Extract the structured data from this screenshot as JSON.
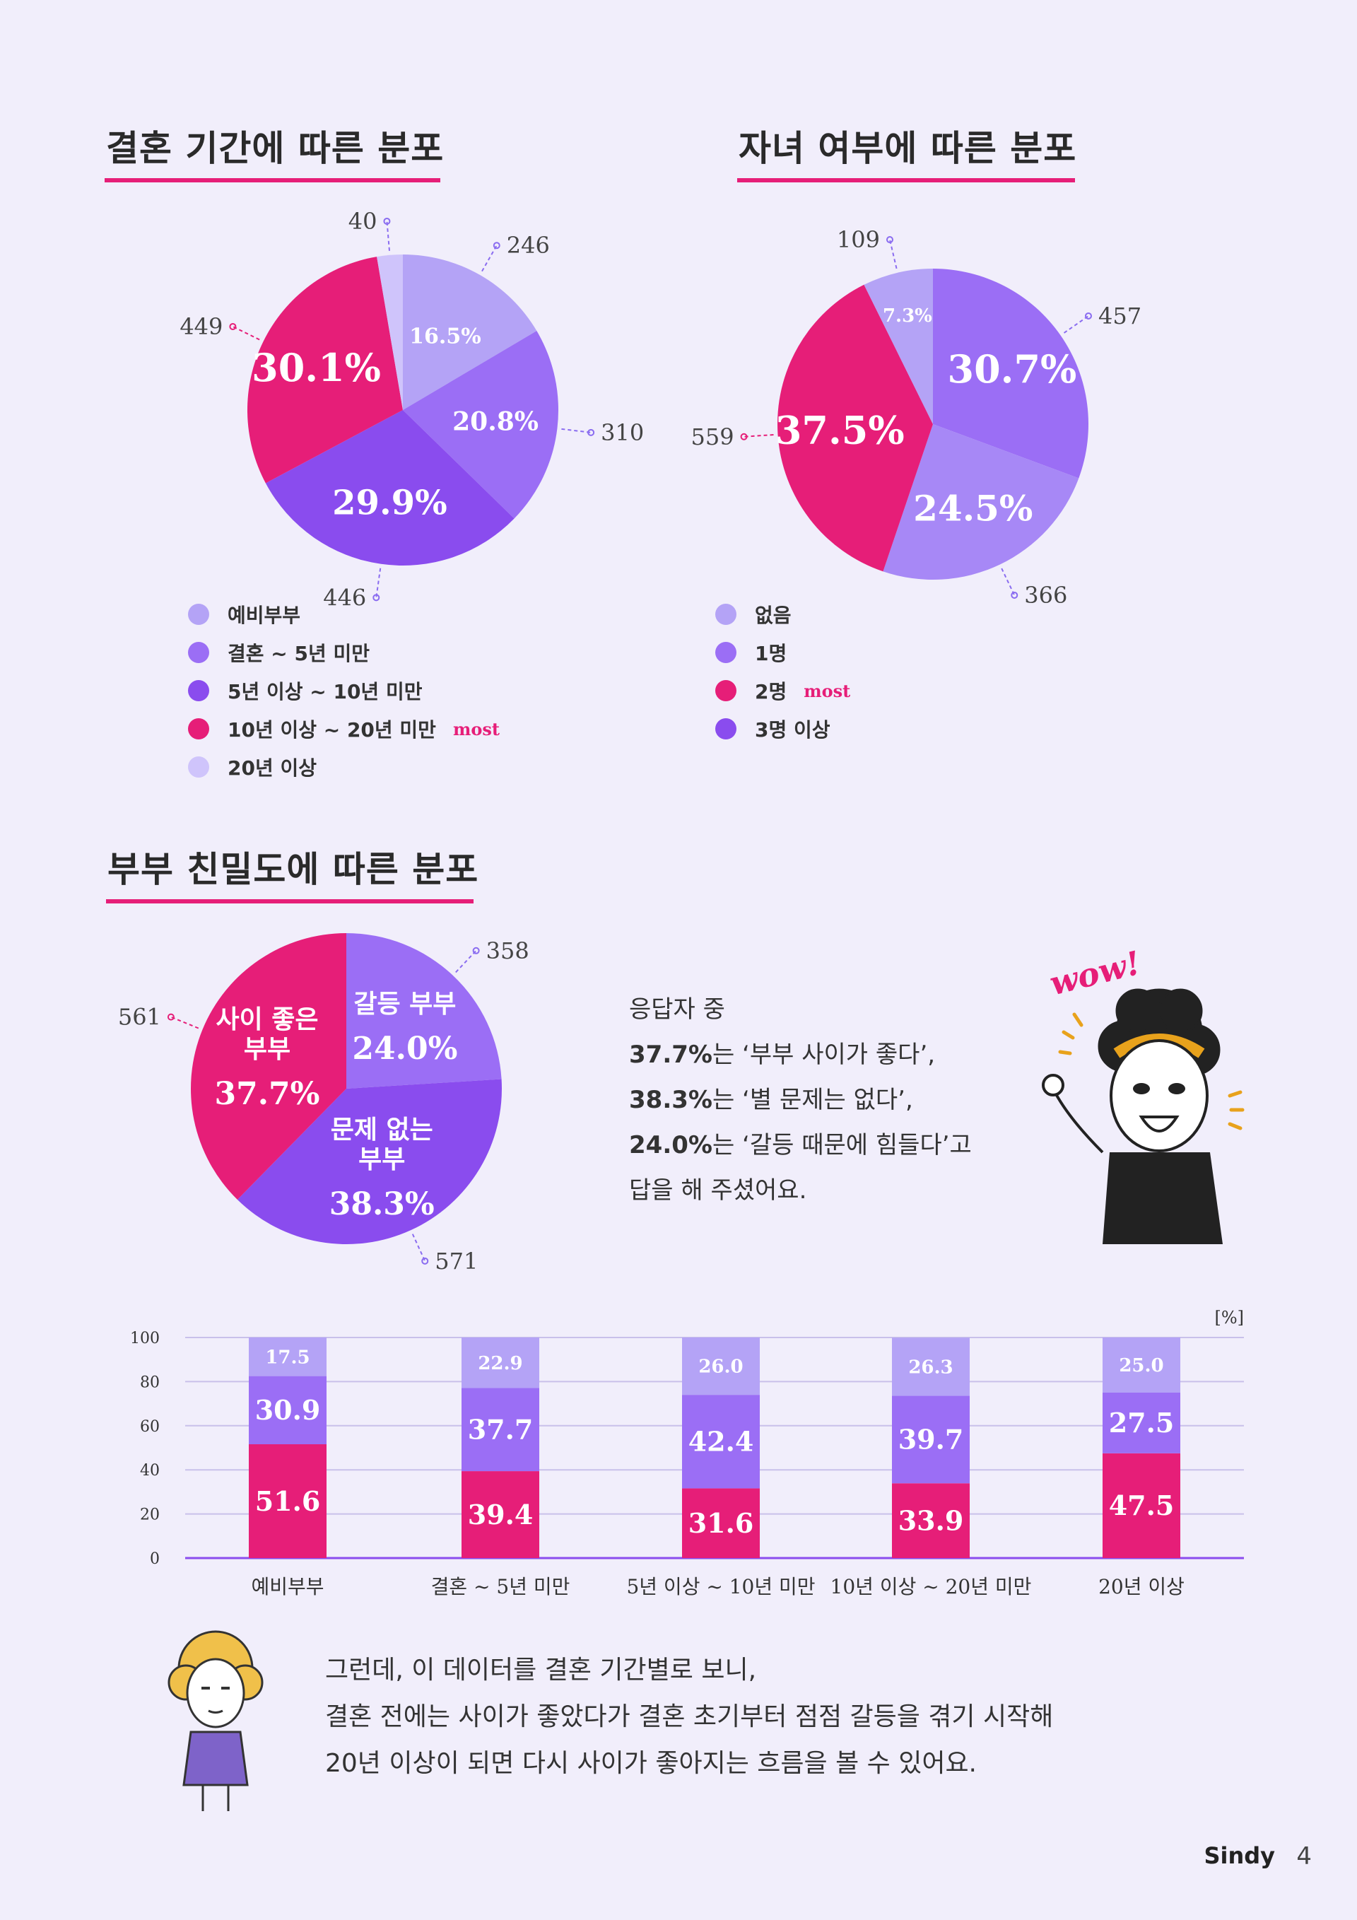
{
  "sections": {
    "marriage_duration": {
      "title": "결혼 기간에 따른 분포",
      "legend": [
        {
          "label": "예비부부",
          "color": "#b4a3f6"
        },
        {
          "label": "결혼 ~ 5년 미만",
          "color": "#9b6ef5"
        },
        {
          "label": "5년 이상 ~ 10년 미만",
          "color": "#8a4cee"
        },
        {
          "label": "10년 이상 ~ 20년 미만",
          "color": "#e61e78",
          "tag": "most"
        },
        {
          "label": "20년 이상",
          "color": "#cfc4fb"
        }
      ]
    },
    "children": {
      "title": "자녀 여부에 따른 분포",
      "legend": [
        {
          "label": "없음",
          "color": "#b4a3f6"
        },
        {
          "label": "1명",
          "color": "#9b6ef5"
        },
        {
          "label": "2명",
          "color": "#e61e78",
          "tag": "most"
        },
        {
          "label": "3명 이상",
          "color": "#8a4cee"
        }
      ]
    },
    "intimacy": {
      "title": "부부 친밀도에 따른 분포",
      "paragraph": [
        {
          "plain": "응답자 중"
        },
        {
          "bold": "37.7%",
          "plain": "는 ‘부부 사이가 좋다’,"
        },
        {
          "bold": "38.3%",
          "plain": "는 ‘별 문제는 없다’,"
        },
        {
          "bold": "24.0%",
          "plain": "는 ‘갈등 때문에 힘들다’고"
        },
        {
          "plain": "답을 해 주셨어요."
        }
      ],
      "wow_text": "wow!"
    }
  },
  "bottom_text": [
    "그런데, 이 데이터를 결혼 기간별로 보니,",
    "결혼 전에는 사이가 좋았다가 결혼 초기부터 점점 갈등을 겪기 시작해",
    "20년 이상이 되면 다시 사이가 좋아지는 흐름을 볼 수 있어요."
  ],
  "footer": {
    "brand": "Sindy",
    "page": "4"
  },
  "chart_data": [
    {
      "type": "pie",
      "title": "결혼 기간에 따른 분포",
      "slices": [
        {
          "label": "예비부부",
          "count": 246,
          "percent": "16.5%",
          "color": "#b4a3f6"
        },
        {
          "label": "결혼 ~ 5년 미만",
          "count": 310,
          "percent": "20.8%",
          "color": "#9b6ef5"
        },
        {
          "label": "5년 이상 ~ 10년 미만",
          "count": 446,
          "percent": "29.9%",
          "color": "#8a4cee"
        },
        {
          "label": "10년 이상 ~ 20년 미만",
          "count": 449,
          "percent": "30.1%",
          "color": "#e61e78"
        },
        {
          "label": "20년 이상",
          "count": 40,
          "percent": "",
          "color": "#cfc4fb"
        }
      ]
    },
    {
      "type": "pie",
      "title": "자녀 여부에 따른 분포",
      "slices": [
        {
          "label": "1명",
          "count": 457,
          "percent": "30.7%",
          "color": "#9b6ef5"
        },
        {
          "label": "3명 이상",
          "count": 366,
          "percent": "24.5%",
          "color": "#a788f6"
        },
        {
          "label": "2명",
          "count": 559,
          "percent": "37.5%",
          "color": "#e61e78"
        },
        {
          "label": "없음",
          "count": 109,
          "percent": "7.3%",
          "color": "#b4a3f6"
        }
      ]
    },
    {
      "type": "pie",
      "title": "부부 친밀도에 따른 분포",
      "slices": [
        {
          "label": "갈등 부부",
          "count": 358,
          "percent": "24.0%",
          "color": "#9b6ef5"
        },
        {
          "label": "문제 없는 부부",
          "count": 571,
          "percent": "38.3%",
          "color": "#8a4cee"
        },
        {
          "label": "사이 좋은 부부",
          "count": 561,
          "percent": "37.7%",
          "color": "#e61e78"
        }
      ]
    },
    {
      "type": "bar",
      "stacked": true,
      "unit": "[%]",
      "categories": [
        "예비부부",
        "결혼 ~ 5년 미만",
        "5년 이상 ~ 10년 미만",
        "10년 이상 ~ 20년 미만",
        "20년 이상"
      ],
      "series": [
        {
          "values": [
            51.6,
            39.4,
            31.6,
            33.9,
            47.5
          ],
          "color": "#e61e78"
        },
        {
          "values": [
            30.9,
            37.7,
            42.4,
            39.7,
            27.5
          ],
          "color": "#9b6ef5"
        },
        {
          "values": [
            17.5,
            22.9,
            26.0,
            26.3,
            25.0
          ],
          "color": "#b4a3f6"
        }
      ],
      "yticks": [
        "100",
        "80",
        "60",
        "40",
        "20",
        "0"
      ],
      "ylim": [
        0,
        100
      ],
      "grid": true
    }
  ]
}
